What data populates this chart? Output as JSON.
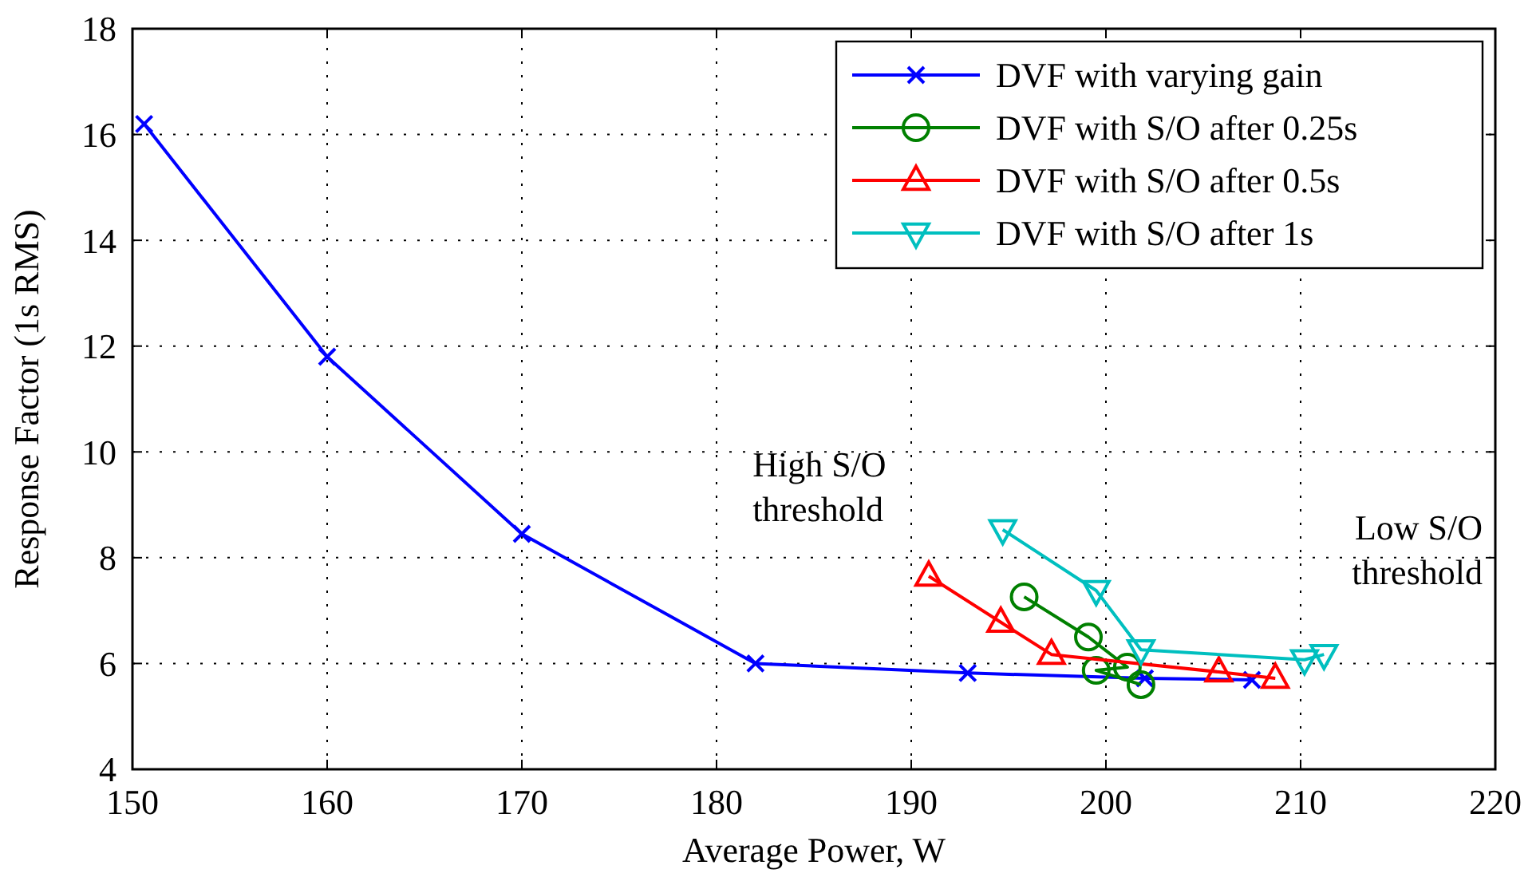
{
  "chart_data": {
    "type": "line",
    "xlabel": "Average Power, W",
    "ylabel": "Response Factor (1s RMS)",
    "xlim": [
      150,
      220
    ],
    "xticks": [
      150,
      160,
      170,
      180,
      190,
      200,
      210,
      220
    ],
    "ylim": [
      4,
      18
    ],
    "yticks": [
      4,
      6,
      8,
      10,
      12,
      14,
      16,
      18
    ],
    "grid": true,
    "legend": "top right",
    "line_style": "solid",
    "series": [
      {
        "name": "DVF with varying gain",
        "color": "#0000ff",
        "marker": "cross",
        "x": [
          150.6,
          160,
          170,
          182,
          192.9,
          202,
          207.5
        ],
        "values": [
          16.2,
          11.8,
          8.45,
          6.0,
          5.82,
          5.72,
          5.69
        ]
      },
      {
        "name": "DVF with S/O after 0.25s",
        "color": "#008000",
        "marker": "circle",
        "x": [
          195.8,
          199.1,
          201.1,
          199.5,
          201.8
        ],
        "values": [
          7.26,
          6.5,
          5.93,
          5.87,
          5.6
        ]
      },
      {
        "name": "DVF with S/O after 0.5s",
        "color": "#ff0000",
        "marker": "triangle",
        "x": [
          190.9,
          194.6,
          197.2,
          205.8,
          208.7
        ],
        "values": [
          7.65,
          6.78,
          6.17,
          5.84,
          5.72
        ]
      },
      {
        "name": "DVF with S/O after 1s",
        "color": "#00bfbf",
        "marker": "triangle-down",
        "x": [
          194.7,
          199.5,
          201.8,
          210.2,
          211.2
        ],
        "values": [
          8.53,
          7.38,
          6.26,
          6.07,
          6.17
        ]
      }
    ],
    "annotations": [
      "High S/O\nthreshold",
      "Low S/O\nthreshold"
    ]
  }
}
